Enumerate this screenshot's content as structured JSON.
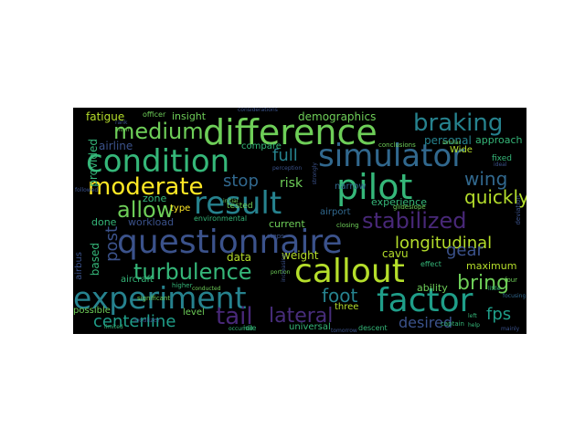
{
  "palette": {
    "background": "#000000",
    "page": "#ffffff",
    "colors": [
      "#3b528b",
      "#31688e",
      "#26828e",
      "#1f9e89",
      "#35b779",
      "#6ece58",
      "#b5de2b",
      "#fde725",
      "#482878",
      "#472d7b"
    ]
  },
  "words": [
    {
      "text": "questionnaire",
      "color": "#3b528b"
    },
    {
      "text": "difference",
      "color": "#6ece58"
    },
    {
      "text": "condition",
      "color": "#35b779"
    },
    {
      "text": "simulator",
      "color": "#31688e"
    },
    {
      "text": "experiment",
      "color": "#26828e"
    },
    {
      "text": "result",
      "color": "#26828e"
    },
    {
      "text": "pilot",
      "color": "#35b779"
    },
    {
      "text": "callout",
      "color": "#b5de2b"
    },
    {
      "text": "factor",
      "color": "#1f9e89"
    },
    {
      "text": "turbulence",
      "color": "#35b779"
    },
    {
      "text": "moderate",
      "color": "#fde725"
    },
    {
      "text": "braking",
      "color": "#26828e"
    },
    {
      "text": "medium",
      "color": "#6ece58"
    },
    {
      "text": "allow",
      "color": "#6ece58"
    },
    {
      "text": "stabilized",
      "color": "#482878"
    },
    {
      "text": "tail",
      "color": "#482878"
    },
    {
      "text": "lateral",
      "color": "#472d7b"
    },
    {
      "text": "centerline",
      "color": "#1f9e89"
    },
    {
      "text": "longitudinal",
      "color": "#b5de2b"
    },
    {
      "text": "quickly",
      "color": "#b5de2b"
    },
    {
      "text": "stop",
      "color": "#31688e"
    },
    {
      "text": "wing",
      "color": "#31688e"
    },
    {
      "text": "foot",
      "color": "#26828e"
    },
    {
      "text": "bring",
      "color": "#6ece58"
    },
    {
      "text": "fps",
      "color": "#1f9e89"
    },
    {
      "text": "full",
      "color": "#26828e"
    },
    {
      "text": "gear",
      "color": "#3b528b"
    },
    {
      "text": "post",
      "color": "#3b528b"
    },
    {
      "text": "desired",
      "color": "#3b528b"
    },
    {
      "text": "risk",
      "color": "#6ece58"
    },
    {
      "text": "demographics",
      "color": "#6ece58"
    },
    {
      "text": "fatigue",
      "color": "#b5de2b"
    },
    {
      "text": "insight",
      "color": "#6ece58"
    },
    {
      "text": "personal",
      "color": "#26828e"
    },
    {
      "text": "approach",
      "color": "#35b779"
    },
    {
      "text": "airline",
      "color": "#3b528b"
    },
    {
      "text": "provided",
      "color": "#35b779"
    },
    {
      "text": "experience",
      "color": "#35b779"
    },
    {
      "text": "zone",
      "color": "#35b779"
    },
    {
      "text": "workload",
      "color": "#3b528b"
    },
    {
      "text": "current",
      "color": "#6ece58"
    },
    {
      "text": "done",
      "color": "#35b779"
    },
    {
      "text": "based",
      "color": "#35b779"
    },
    {
      "text": "aircraft",
      "color": "#35b779"
    },
    {
      "text": "data",
      "color": "#b5de2b"
    },
    {
      "text": "weight",
      "color": "#b5de2b"
    },
    {
      "text": "cavu",
      "color": "#b5de2b"
    },
    {
      "text": "maximum",
      "color": "#b5de2b"
    },
    {
      "text": "ability",
      "color": "#6ece58"
    },
    {
      "text": "three",
      "color": "#b5de2b"
    },
    {
      "text": "universal",
      "color": "#35b779"
    },
    {
      "text": "level",
      "color": "#6ece58"
    },
    {
      "text": "possible",
      "color": "#6ece58"
    },
    {
      "text": "airbus",
      "color": "#3b528b"
    },
    {
      "text": "type",
      "color": "#fde725"
    },
    {
      "text": "airport",
      "color": "#31688e"
    },
    {
      "text": "tested",
      "color": "#6ece58"
    },
    {
      "text": "narrow",
      "color": "#31688e"
    },
    {
      "text": "Wide",
      "color": "#b5de2b"
    },
    {
      "text": "compare",
      "color": "#35b779"
    },
    {
      "text": "officer",
      "color": "#6ece58"
    },
    {
      "text": "environmental",
      "color": "#35b779"
    },
    {
      "text": "conclusions",
      "color": "#6ece58"
    },
    {
      "text": "fixed",
      "color": "#35b779"
    },
    {
      "text": "idle",
      "color": "#35b779"
    },
    {
      "text": "descent",
      "color": "#35b779"
    },
    {
      "text": "glideslope",
      "color": "#6ece58"
    },
    {
      "text": "effect",
      "color": "#35b779"
    },
    {
      "text": "higher",
      "color": "#35b779"
    },
    {
      "text": "significant",
      "color": "#6ece58"
    },
    {
      "text": "closing",
      "color": "#6ece58"
    },
    {
      "text": "steps",
      "color": "#3b528b"
    },
    {
      "text": "captain",
      "color": "#35b779"
    },
    {
      "text": "localizer",
      "color": "#3b528b"
    },
    {
      "text": "limited",
      "color": "#35b779"
    },
    {
      "text": "similar",
      "color": "#6ece58"
    },
    {
      "text": "initial",
      "color": "#6ece58"
    },
    {
      "text": "portion",
      "color": "#6ece58"
    },
    {
      "text": "conducted",
      "color": "#6ece58"
    },
    {
      "text": "occurred",
      "color": "#35b779"
    },
    {
      "text": "rank",
      "color": "#3b528b"
    },
    {
      "text": "often",
      "color": "#6ece58"
    },
    {
      "text": "focusing",
      "color": "#31688e"
    },
    {
      "text": "little",
      "color": "#35b779"
    },
    {
      "text": "perception",
      "color": "#3b528b"
    },
    {
      "text": "considerations",
      "color": "#3b528b"
    },
    {
      "text": "strongly",
      "color": "#3b528b"
    },
    {
      "text": "increasing",
      "color": "#3b528b"
    },
    {
      "text": "followed",
      "color": "#3b528b"
    },
    {
      "text": "four",
      "color": "#6ece58"
    },
    {
      "text": "left",
      "color": "#35b779"
    },
    {
      "text": "help",
      "color": "#35b779"
    },
    {
      "text": "deviation",
      "color": "#3b528b"
    },
    {
      "text": "ideal",
      "color": "#3b528b"
    },
    {
      "text": "tomorrow",
      "color": "#3b528b"
    },
    {
      "text": "mainly",
      "color": "#3b528b"
    }
  ]
}
